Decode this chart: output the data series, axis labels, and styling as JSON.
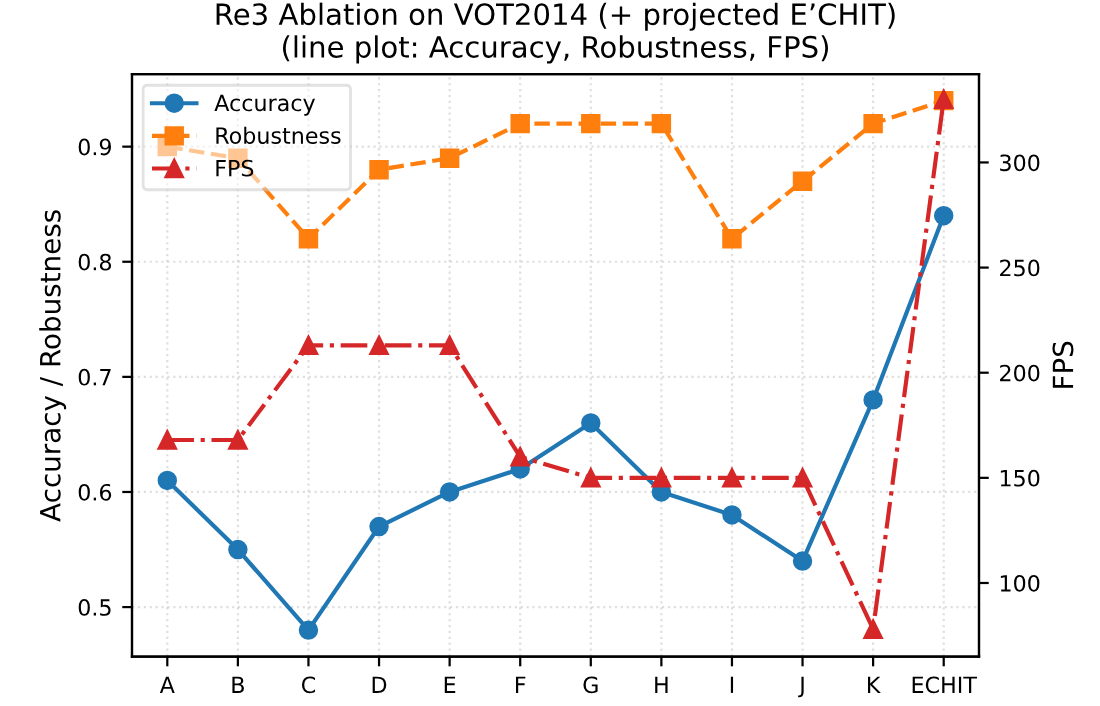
{
  "chart_data": {
    "type": "line",
    "title": "Re3 Ablation on VOT2014 (+ projected E’CHIT)\n(line plot: Accuracy, Robustness, FPS)",
    "categories": [
      "A",
      "B",
      "C",
      "D",
      "E",
      "F",
      "G",
      "H",
      "I",
      "J",
      "K",
      "ECHIT"
    ],
    "ylabel": "Accuracy / Robustness",
    "y2label": "FPS",
    "series": [
      {
        "name": "Accuracy",
        "color": "#1f77b4",
        "marker": "circle",
        "line_style": "solid",
        "values": [
          0.61,
          0.55,
          0.48,
          0.57,
          0.6,
          0.62,
          0.66,
          0.6,
          0.58,
          0.54,
          0.68,
          0.84
        ]
      },
      {
        "name": "Robustness",
        "color": "#ff7f0e",
        "marker": "square",
        "line_style": "dashed",
        "values": [
          0.9,
          0.89,
          0.82,
          0.88,
          0.89,
          0.92,
          0.92,
          0.92,
          0.82,
          0.87,
          0.92,
          0.94
        ]
      },
      {
        "name": "FPS",
        "color": "#d62728",
        "marker": "triangle",
        "line_style": "dashdot",
        "axis": "y2",
        "values": [
          168,
          168,
          213,
          213,
          213,
          160,
          150,
          150,
          150,
          150,
          78,
          330
        ]
      }
    ],
    "ylim": [
      0.457,
      0.963
    ],
    "yticks": [
      0.5,
      0.6,
      0.7,
      0.8,
      0.9
    ],
    "y2lim": [
      65,
      342
    ],
    "y2ticks": [
      100,
      150,
      200,
      250,
      300
    ],
    "grid": true,
    "legend": "top left"
  }
}
